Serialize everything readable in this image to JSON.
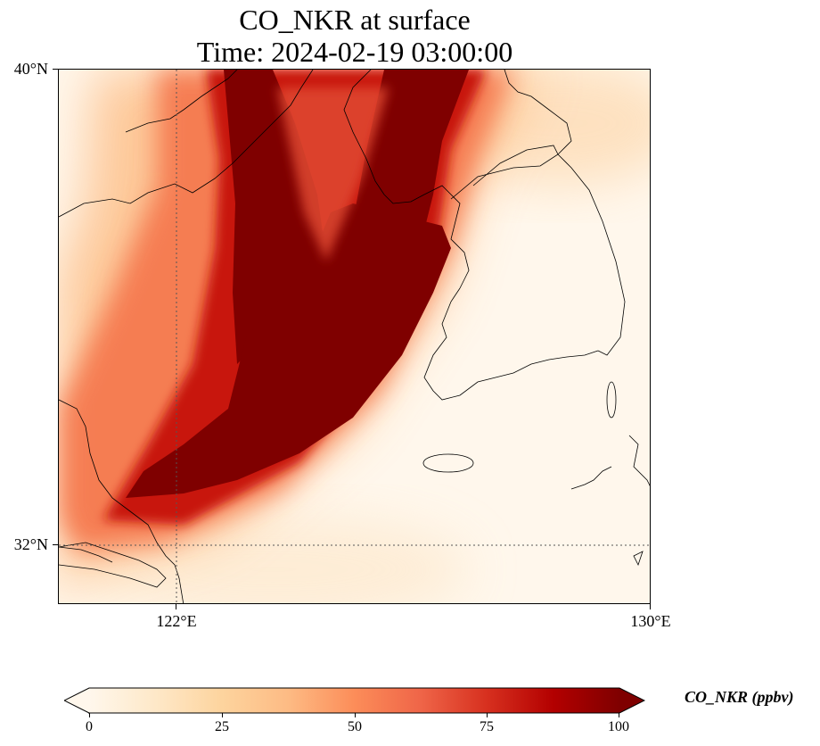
{
  "title": {
    "line1": "CO_NKR at surface",
    "line2": "Time: 2024-02-19 03:00:00"
  },
  "map": {
    "variable": "CO_NKR",
    "level": "surface",
    "time": "2024-02-19 03:00:00",
    "extent": {
      "lon_min": 120,
      "lon_max": 130,
      "lat_min": 31,
      "lat_max": 40
    },
    "gridlines": {
      "longitudes": [
        122,
        130
      ],
      "latitudes": [
        32,
        40
      ],
      "style": "dotted"
    },
    "lat_labels": [
      "40°N",
      "32°N"
    ],
    "lon_labels": [
      "122°E",
      "130°E"
    ],
    "features": [
      "coastlines"
    ],
    "plume_description_points": [
      {
        "lon": 123.0,
        "lat": 39.9
      },
      {
        "lon": 125.3,
        "lat": 39.9
      },
      {
        "lon": 124.8,
        "lat": 39.0
      },
      {
        "lon": 124.6,
        "lat": 38.3
      },
      {
        "lon": 125.5,
        "lat": 37.5
      },
      {
        "lon": 124.6,
        "lat": 36.2
      },
      {
        "lon": 123.5,
        "lat": 34.9
      },
      {
        "lon": 122.3,
        "lat": 33.8
      },
      {
        "lon": 121.0,
        "lat": 33.6
      },
      {
        "lon": 121.2,
        "lat": 34.2
      },
      {
        "lon": 123.0,
        "lat": 36.2
      },
      {
        "lon": 123.5,
        "lat": 37.2
      },
      {
        "lon": 123.0,
        "lat": 38.5
      }
    ]
  },
  "colorbar": {
    "label": "CO_NKR (ppbv)",
    "cmap": "OrRd",
    "min": 0,
    "max": 100,
    "extend": "both",
    "ticks": [
      "0",
      "25",
      "50",
      "75",
      "100"
    ],
    "colors": [
      "#fff7ec",
      "#fee8c8",
      "#fdd49e",
      "#fdbb84",
      "#fc8d59",
      "#ef6548",
      "#d7301f",
      "#b30000",
      "#7f0000"
    ]
  }
}
